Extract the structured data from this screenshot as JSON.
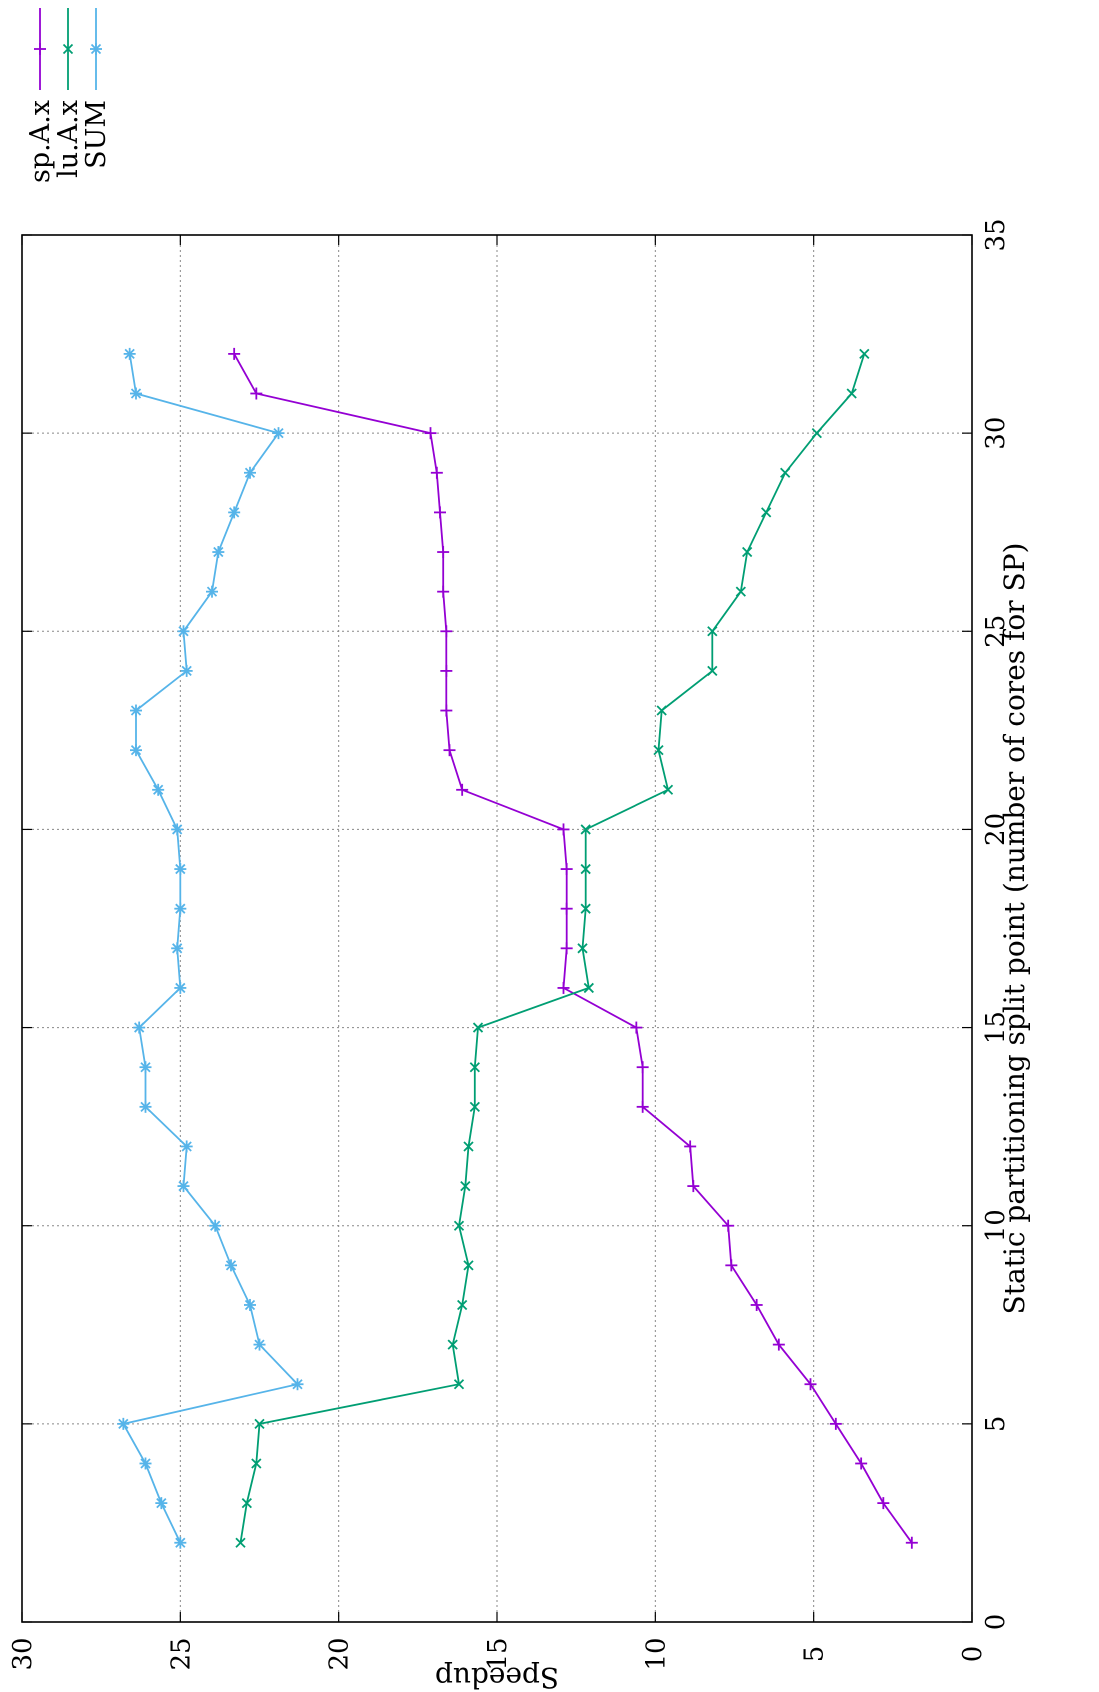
{
  "chart_data": {
    "type": "line",
    "xlabel": "Static partitioning split point (number of cores for SP)",
    "ylabel": "Speedup",
    "xlim": [
      0,
      35
    ],
    "ylim": [
      0,
      30
    ],
    "xticks": [
      0,
      5,
      10,
      15,
      20,
      25,
      30,
      35
    ],
    "yticks": [
      0,
      5,
      10,
      15,
      20,
      25,
      30
    ],
    "grid": true,
    "orientation": "rotated 90 degrees counter-clockwise",
    "legend_position": "top-left (rotated)",
    "x": [
      2,
      3,
      4,
      5,
      6,
      7,
      8,
      9,
      10,
      11,
      12,
      13,
      14,
      15,
      16,
      17,
      18,
      19,
      20,
      21,
      22,
      23,
      24,
      25,
      26,
      27,
      28,
      29,
      30,
      31,
      32
    ],
    "series": [
      {
        "name": "sp.A.x",
        "color": "#9400d3",
        "marker": "plus",
        "values": [
          1.9,
          2.8,
          3.5,
          4.3,
          5.1,
          6.1,
          6.8,
          7.6,
          7.7,
          8.8,
          8.9,
          10.4,
          10.4,
          10.6,
          12.9,
          12.8,
          12.8,
          12.8,
          12.9,
          16.1,
          16.5,
          16.6,
          16.6,
          16.6,
          16.7,
          16.7,
          16.8,
          16.9,
          17.1,
          22.6,
          23.3
        ]
      },
      {
        "name": "lu.A.x",
        "color": "#009e73",
        "marker": "cross",
        "values": [
          23.1,
          22.9,
          22.6,
          22.5,
          16.2,
          16.4,
          16.1,
          15.9,
          16.2,
          16.0,
          15.9,
          15.7,
          15.7,
          15.6,
          12.1,
          12.3,
          12.2,
          12.2,
          12.2,
          9.6,
          9.9,
          9.8,
          8.2,
          8.2,
          7.3,
          7.1,
          6.5,
          5.9,
          4.9,
          3.8,
          3.4
        ]
      },
      {
        "name": "SUM",
        "color": "#56b4e9",
        "marker": "star",
        "values": [
          25.0,
          25.6,
          26.1,
          26.8,
          21.3,
          22.5,
          22.8,
          23.4,
          23.9,
          24.9,
          24.8,
          26.1,
          26.1,
          26.3,
          25.0,
          25.1,
          25.0,
          25.0,
          25.1,
          25.7,
          26.4,
          26.4,
          24.8,
          24.9,
          24.0,
          23.8,
          23.3,
          22.8,
          21.9,
          26.4,
          26.6
        ]
      }
    ]
  }
}
